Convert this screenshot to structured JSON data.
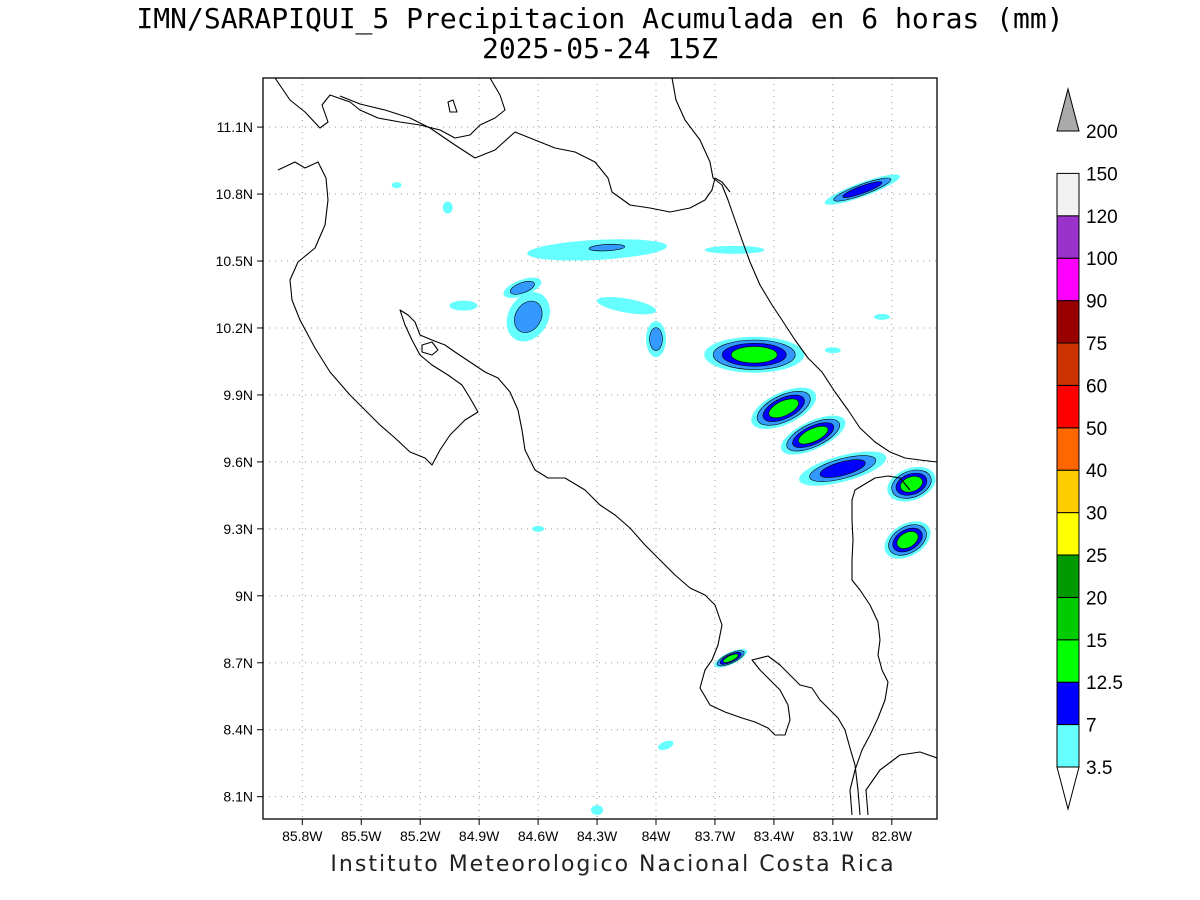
{
  "title": "IMN/SARAPIQUI_5 Precipitacion Acumulada en 6 horas (mm)",
  "subtitle": "2025-05-24 15Z",
  "footer": "Instituto Meteorologico Nacional Costa Rica",
  "map": {
    "lon_range": [
      -86.0,
      -82.57
    ],
    "lat_range": [
      8.0,
      11.32
    ],
    "lon_ticks": [
      {
        "value": -85.8,
        "label": "85.8W"
      },
      {
        "value": -85.5,
        "label": "85.5W"
      },
      {
        "value": -85.2,
        "label": "85.2W"
      },
      {
        "value": -84.9,
        "label": "84.9W"
      },
      {
        "value": -84.6,
        "label": "84.6W"
      },
      {
        "value": -84.3,
        "label": "84.3W"
      },
      {
        "value": -84.0,
        "label": "84W"
      },
      {
        "value": -83.7,
        "label": "83.7W"
      },
      {
        "value": -83.4,
        "label": "83.4W"
      },
      {
        "value": -83.1,
        "label": "83.1W"
      },
      {
        "value": -82.8,
        "label": "82.8W"
      }
    ],
    "lat_ticks": [
      {
        "value": 8.1,
        "label": "8.1N"
      },
      {
        "value": 8.4,
        "label": "8.4N"
      },
      {
        "value": 8.7,
        "label": "8.7N"
      },
      {
        "value": 9.0,
        "label": "9N"
      },
      {
        "value": 9.3,
        "label": "9.3N"
      },
      {
        "value": 9.6,
        "label": "9.6N"
      },
      {
        "value": 9.9,
        "label": "9.9N"
      },
      {
        "value": 10.2,
        "label": "10.2N"
      },
      {
        "value": 10.5,
        "label": "10.5N"
      },
      {
        "value": 10.8,
        "label": "10.8N"
      },
      {
        "value": 11.1,
        "label": "11.1N"
      }
    ],
    "grid": true
  },
  "colorbar": {
    "levels": [
      {
        "label": "3.5",
        "color": "#66ffff"
      },
      {
        "label": "7",
        "color": "#3399ff"
      },
      {
        "label": "12.5",
        "color": "#0000ff"
      },
      {
        "label": "15",
        "color": "#00ff00"
      },
      {
        "label": "20",
        "color": "#00cc00"
      },
      {
        "label": "25",
        "color": "#009900"
      },
      {
        "label": "30",
        "color": "#ffff00"
      },
      {
        "label": "40",
        "color": "#ffcc00"
      },
      {
        "label": "50",
        "color": "#ff6600"
      },
      {
        "label": "60",
        "color": "#ff0000"
      },
      {
        "label": "75",
        "color": "#cc3300"
      },
      {
        "label": "90",
        "color": "#990000"
      },
      {
        "label": "100",
        "color": "#ff00ff"
      },
      {
        "label": "120",
        "color": "#9933cc"
      },
      {
        "label": "150",
        "color": "#f2f2f2"
      },
      {
        "label": "200",
        "color": "#aaaaaa"
      }
    ]
  },
  "precip_cells": [
    {
      "lon": -82.95,
      "lat": 10.82,
      "rx": 40,
      "ry": 7,
      "rot": -20,
      "max": 3
    },
    {
      "lon": -84.3,
      "lat": 10.55,
      "rx": 70,
      "ry": 10,
      "rot": -3,
      "max": 1
    },
    {
      "lon": -84.25,
      "lat": 10.56,
      "rx": 28,
      "ry": 5,
      "rot": -3,
      "max": 2
    },
    {
      "lon": -84.65,
      "lat": 10.25,
      "rx": 20,
      "ry": 26,
      "rot": 30,
      "max": 2
    },
    {
      "lon": -84.68,
      "lat": 10.38,
      "rx": 20,
      "ry": 8,
      "rot": -20,
      "max": 2
    },
    {
      "lon": -84.0,
      "lat": 10.15,
      "rx": 10,
      "ry": 18,
      "rot": 0,
      "max": 2
    },
    {
      "lon": -84.15,
      "lat": 10.3,
      "rx": 30,
      "ry": 7,
      "rot": 10,
      "max": 1
    },
    {
      "lon": -84.98,
      "lat": 10.3,
      "rx": 14,
      "ry": 5,
      "rot": 0,
      "max": 1
    },
    {
      "lon": -83.5,
      "lat": 10.08,
      "rx": 50,
      "ry": 18,
      "rot": 0,
      "max": 4
    },
    {
      "lon": -83.35,
      "lat": 9.84,
      "rx": 35,
      "ry": 16,
      "rot": -25,
      "max": 4
    },
    {
      "lon": -83.2,
      "lat": 9.72,
      "rx": 35,
      "ry": 14,
      "rot": -25,
      "max": 4
    },
    {
      "lon": -83.05,
      "lat": 9.57,
      "rx": 45,
      "ry": 13,
      "rot": -15,
      "max": 3
    },
    {
      "lon": -82.7,
      "lat": 9.5,
      "rx": 25,
      "ry": 16,
      "rot": -20,
      "max": 4
    },
    {
      "lon": -82.72,
      "lat": 9.25,
      "rx": 25,
      "ry": 16,
      "rot": -30,
      "max": 4
    },
    {
      "lon": -83.62,
      "lat": 8.72,
      "rx": 18,
      "ry": 6,
      "rot": -25,
      "max": 4
    },
    {
      "lon": -83.6,
      "lat": 10.55,
      "rx": 30,
      "ry": 4,
      "rot": 0,
      "max": 1
    },
    {
      "lon": -84.3,
      "lat": 8.04,
      "rx": 6,
      "ry": 5,
      "rot": 0,
      "max": 1
    },
    {
      "lon": -83.95,
      "lat": 8.33,
      "rx": 8,
      "ry": 4,
      "rot": -20,
      "max": 1
    },
    {
      "lon": -84.6,
      "lat": 9.3,
      "rx": 6,
      "ry": 3,
      "rot": 0,
      "max": 1
    },
    {
      "lon": -85.06,
      "lat": 10.74,
      "rx": 5,
      "ry": 6,
      "rot": 0,
      "max": 1
    },
    {
      "lon": -85.32,
      "lat": 10.84,
      "rx": 5,
      "ry": 3,
      "rot": 0,
      "max": 1
    },
    {
      "lon": -82.85,
      "lat": 10.25,
      "rx": 8,
      "ry": 3,
      "rot": 0,
      "max": 1
    },
    {
      "lon": -83.1,
      "lat": 10.1,
      "rx": 8,
      "ry": 3,
      "rot": 0,
      "max": 1
    }
  ]
}
